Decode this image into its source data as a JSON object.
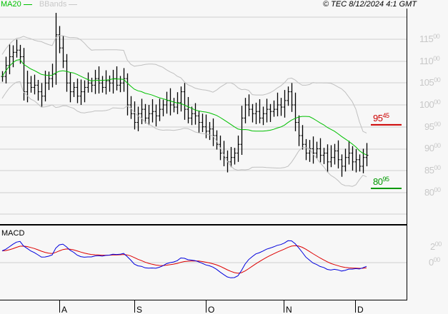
{
  "header": {
    "legend_ma": "MA20",
    "legend_bb": "BBands",
    "copyright": "© TEC 8/12/2024 4:1 GMT"
  },
  "colors": {
    "ma": "#00c000",
    "bb": "#c0c0c0",
    "resistance": "#cc0000",
    "support": "#009900",
    "macd": "#0000dd",
    "signal": "#dd0000"
  },
  "chart_data": {
    "type": "ohlc",
    "title": "",
    "price_axis": {
      "ticks": [
        {
          "big": "115",
          "small": "00",
          "value": 11500
        },
        {
          "big": "110",
          "small": "00",
          "value": 11000
        },
        {
          "big": "105",
          "small": "00",
          "value": 10500
        },
        {
          "big": "100",
          "small": "00",
          "value": 10000
        },
        {
          "big": "95",
          "small": "00",
          "value": 9500
        },
        {
          "big": "90",
          "small": "00",
          "value": 9000
        },
        {
          "big": "85",
          "small": "00",
          "value": 8500
        },
        {
          "big": "80",
          "small": "00",
          "value": 8000
        }
      ]
    },
    "months": [
      "A",
      "S",
      "O",
      "N",
      "D"
    ],
    "closes": [
      10650,
      10900,
      11100,
      11200,
      11250,
      11100,
      10300,
      10500,
      10400,
      10450,
      10300,
      10200,
      10500,
      10600,
      10700,
      11600,
      11300,
      11000,
      10500,
      10300,
      10400,
      10200,
      10300,
      10400,
      10500,
      10450,
      10600,
      10500,
      10400,
      10550,
      10500,
      10600,
      10450,
      10500,
      10600,
      10000,
      9800,
      9600,
      9800,
      9900,
      9700,
      9800,
      9850,
      9750,
      9900,
      10000,
      10100,
      10000,
      9950,
      10050,
      10300,
      9900,
      9700,
      9800,
      9750,
      9600,
      9500,
      9400,
      9450,
      9300,
      9100,
      8900,
      8800,
      8700,
      8800,
      8900,
      9100,
      9700,
      10000,
      9900,
      9800,
      9850,
      9700,
      9800,
      9900,
      9850,
      9900,
      10000,
      9950,
      10100,
      10300,
      10000,
      9600,
      9300,
      9100,
      8900,
      9000,
      8900,
      9000,
      8850,
      8900,
      8700,
      8800,
      8950,
      8750,
      8600,
      8800,
      8900,
      8700,
      8750,
      8600,
      8800,
      8850
    ],
    "resistance": {
      "value": 9545,
      "big": "95",
      "small": "45"
    },
    "support": {
      "value": 8095,
      "big": "80",
      "small": "95"
    },
    "macd": {
      "label": "MACD",
      "ticks": [
        {
          "big": "2",
          "small": "00",
          "value": 200
        },
        {
          "big": "0",
          "small": "00",
          "value": 0
        }
      ]
    }
  }
}
